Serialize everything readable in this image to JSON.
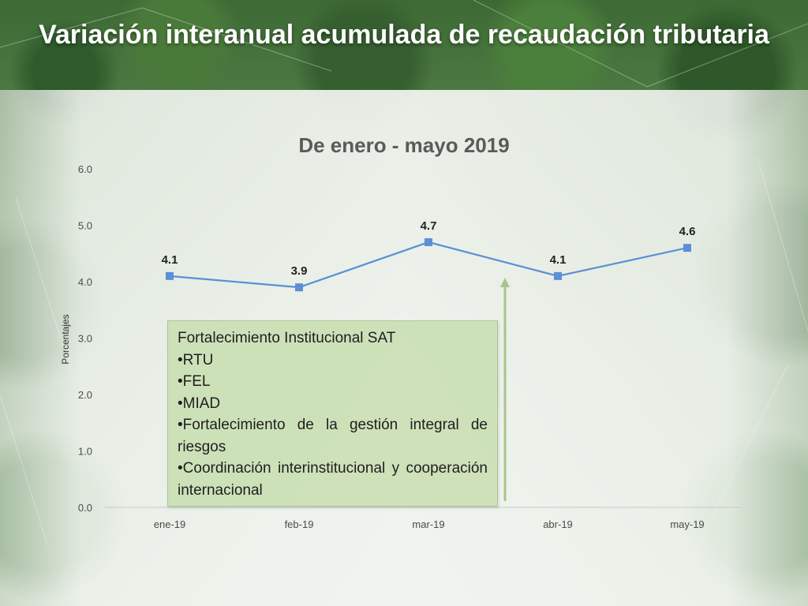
{
  "title": "Variación interanual acumulada de recaudación tributaria",
  "chart_data": {
    "type": "line",
    "title": "De enero - mayo 2019",
    "ylabel": "Porcentajes",
    "xlabel": "",
    "ylim": [
      0,
      6
    ],
    "yticks": [
      "0.0",
      "1.0",
      "2.0",
      "3.0",
      "4.0",
      "5.0",
      "6.0"
    ],
    "categories": [
      "ene-19",
      "feb-19",
      "mar-19",
      "abr-19",
      "may-19"
    ],
    "values": [
      4.1,
      3.9,
      4.7,
      4.1,
      4.6
    ],
    "data_labels": [
      "4.1",
      "3.9",
      "4.7",
      "4.1",
      "4.6"
    ],
    "series_color": "#5b8fd6",
    "grid": false
  },
  "callout": {
    "heading": "Fortalecimiento Institucional SAT",
    "items": [
      "•RTU",
      "•FEL",
      "•MIAD",
      "•Fortalecimiento  de la gestión  integral de riesgos",
      "•Coordinación interinstitucional y cooperación  internacional"
    ],
    "color": "#cbdfb6"
  }
}
